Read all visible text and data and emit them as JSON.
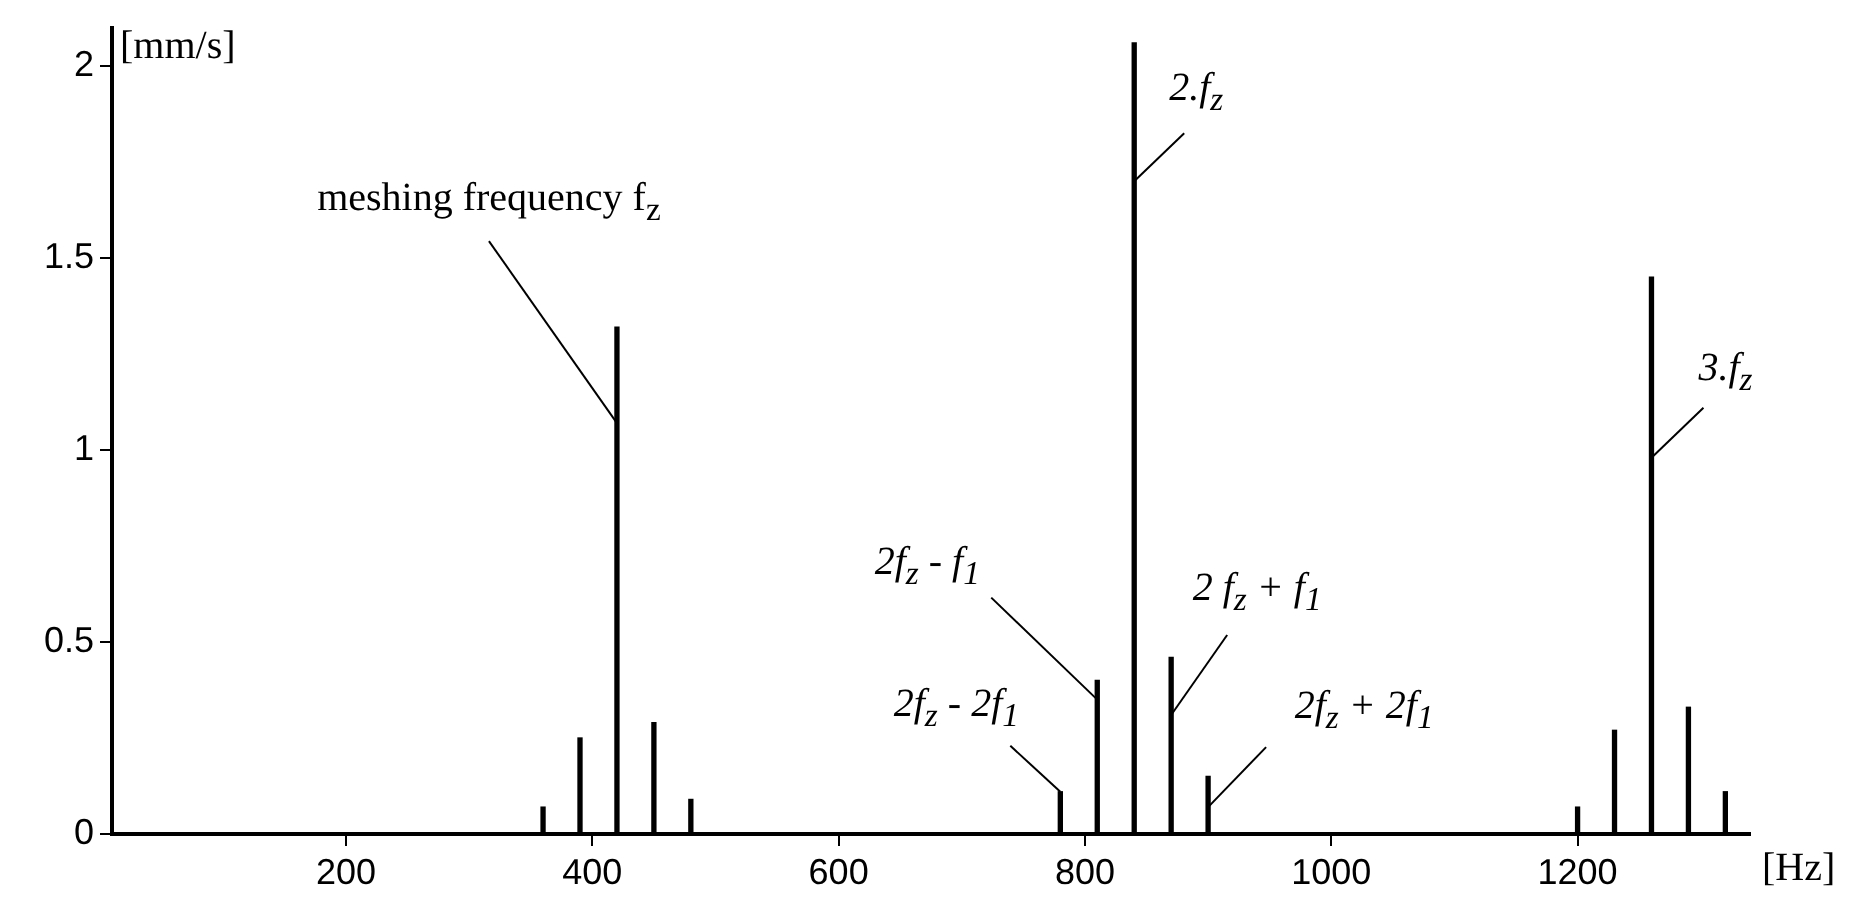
{
  "chart_data": {
    "type": "bar",
    "xlabel": "[Hz]",
    "ylabel": "[mm/s]",
    "x": [
      360,
      390,
      420,
      450,
      480,
      780,
      810,
      840,
      870,
      900,
      1200,
      1230,
      1260,
      1290,
      1320
    ],
    "series": [
      {
        "color": "#000000",
        "values": [
          0.07,
          0.25,
          1.32,
          0.29,
          0.09,
          0.11,
          0.4,
          2.06,
          0.46,
          0.15,
          0.07,
          0.27,
          1.45,
          0.33,
          0.11
        ]
      }
    ],
    "xlim": [
      10,
      1340
    ],
    "xticks": [
      200,
      400,
      600,
      800,
      1000,
      1200
    ],
    "ylim": [
      0,
      2.1
    ],
    "yticks": [
      0,
      0.5,
      1,
      1.5,
      2
    ],
    "grid": false,
    "legend": false,
    "annotations": [
      {
        "text": "meshing frequency f$_{z}$",
        "x": 420,
        "y": 1.07
      },
      {
        "text": "2.f$_{z}$",
        "x": 840,
        "y": 1.7
      },
      {
        "text": "2f$_{z}$ - f$_{1}$",
        "x": 810,
        "y": 0.35
      },
      {
        "text": "2f$_{z}$ - 2f$_{1}$",
        "x": 780,
        "y": 0.11
      },
      {
        "text": "2 f$_{z}$ + f$_{1}$",
        "x": 870,
        "y": 0.31
      },
      {
        "text": "2f$_{z}$ + 2f$_{1}$",
        "x": 900,
        "y": 0.07
      },
      {
        "text": "3.f$_{z}$",
        "x": 1260,
        "y": 0.98
      }
    ]
  }
}
